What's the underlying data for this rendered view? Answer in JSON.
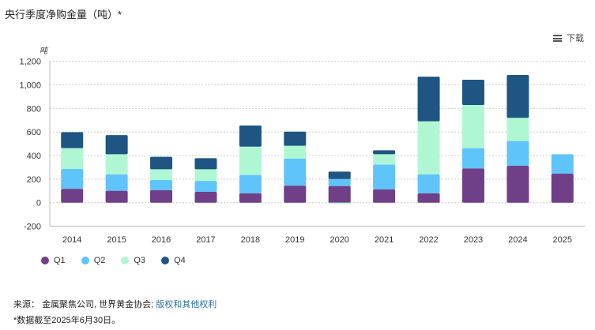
{
  "header": {
    "title": "央行季度净购金量（吨）*",
    "download_label": "下载",
    "download_icon": "menu-icon"
  },
  "chart_data": {
    "type": "bar",
    "stacked": true,
    "title": "央行季度净购金量（吨）*",
    "ylabel": "吨",
    "xlabel": "",
    "ylim": [
      -200,
      1200
    ],
    "yticks": [
      -200,
      0,
      200,
      400,
      600,
      800,
      1000,
      1200
    ],
    "ytick_labels": [
      "-200",
      "0",
      "200",
      "400",
      "600",
      "800",
      "1,000",
      "1,200"
    ],
    "grid": true,
    "legend_position": "bottom-left",
    "categories": [
      "2014",
      "2015",
      "2016",
      "2017",
      "2018",
      "2019",
      "2020",
      "2021",
      "2022",
      "2023",
      "2024",
      "2025"
    ],
    "series": [
      {
        "name": "Q1",
        "color": "#6f3f87",
        "values": [
          118,
          101,
          107,
          92,
          80,
          145,
          141,
          114,
          80,
          291,
          313,
          246
        ]
      },
      {
        "name": "Q2",
        "color": "#5fc4fa",
        "values": [
          168,
          138,
          85,
          93,
          155,
          228,
          60,
          210,
          159,
          172,
          210,
          165
        ]
      },
      {
        "name": "Q3",
        "color": "#aff7d3",
        "values": [
          177,
          172,
          92,
          99,
          241,
          110,
          -10,
          87,
          452,
          366,
          197,
          null
        ]
      },
      {
        "name": "Q4",
        "color": "#1f5583",
        "values": [
          136,
          163,
          105,
          94,
          179,
          120,
          63,
          34,
          379,
          215,
          364,
          null
        ]
      }
    ]
  },
  "footer": {
    "source_label": "来源：",
    "source_text": "金属聚焦公司, 世界黄金协会;",
    "rights_link": "版权和其他权利",
    "note": "*数据截至2025年6月30日。"
  }
}
